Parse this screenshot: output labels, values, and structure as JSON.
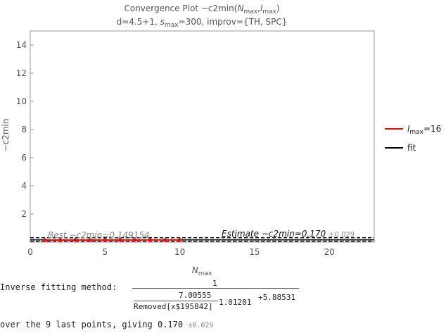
{
  "chart_data": {
    "type": "line",
    "title": "Convergence Plot −c2min(Nₘₐₓ,lₘₐₓ)",
    "title_parts": {
      "prefix": "Convergence Plot −c2min(",
      "n": "N",
      "max": "max",
      "sep": ",",
      "l": "l",
      "suffix": ")"
    },
    "subtitle_parts": {
      "prefix": "d=4.5+1, ",
      "s": "s",
      "max": "max",
      "suffix": "=300, improv={TH, SPC}"
    },
    "xlabel": {
      "main": "N",
      "sub": "max"
    },
    "ylabel": "−c2min",
    "xlim": [
      0,
      23
    ],
    "ylim": [
      0,
      15
    ],
    "xticks": [
      "0",
      "5",
      "10",
      "15",
      "20"
    ],
    "yticks": [
      "2",
      "4",
      "6",
      "8",
      "10",
      "12",
      "14"
    ],
    "series": [
      {
        "name": "l_max=16",
        "color": "#ff0000",
        "x": [
          1,
          2,
          3,
          4,
          5,
          6,
          7,
          8,
          9,
          10
        ],
        "y": [
          0.149,
          0.152,
          0.155,
          0.157,
          0.159,
          0.161,
          0.162,
          0.163,
          0.164,
          0.165
        ]
      }
    ],
    "fit": {
      "name": "fit",
      "color": "#000000",
      "value": 0.17,
      "err": 0.029
    },
    "best": {
      "text": "Best −c2min=0.149154",
      "value": 0.149154
    },
    "estimate": {
      "text": "Estimate −c2min=0.170",
      "err": "±0.029"
    },
    "legend": [
      {
        "label_main": "l",
        "label_sub": "max",
        "label_suffix": "=16",
        "color": "#ff0000"
      },
      {
        "label_main": "fit",
        "color": "#000000"
      }
    ],
    "legend_position": "right",
    "grid": false
  },
  "fit_info": {
    "line1_label": "Inverse fitting method:",
    "numerator": "1",
    "inner_numerator": "7.00555",
    "removed": "Removed[x$195842]",
    "exponent": "1.01201",
    "plus": "+5.88531",
    "line2_text": "over the 9 last points, giving 0.170",
    "line2_err": "±0.029"
  }
}
